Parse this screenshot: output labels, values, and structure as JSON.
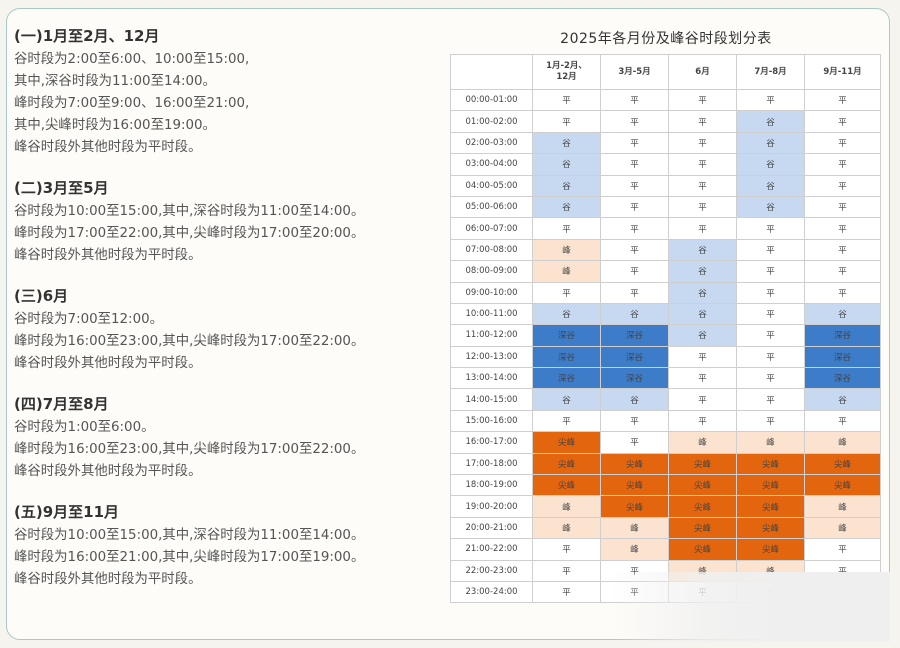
{
  "sections": [
    {
      "title": "(一)1月至2月、12月",
      "lines": [
        "谷时段为2:00至6:00、10:00至15:00,",
        "其中,深谷时段为11:00至14:00。",
        "峰时段为7:00至9:00、16:00至21:00,",
        "其中,尖峰时段为16:00至19:00。",
        "峰谷时段外其他时段为平时段。"
      ]
    },
    {
      "title": "(二)3月至5月",
      "lines": [
        "谷时段为10:00至15:00,其中,深谷时段为11:00至14:00。",
        "峰时段为17:00至22:00,其中,尖峰时段为17:00至20:00。",
        "峰谷时段外其他时段为平时段。"
      ]
    },
    {
      "title": "(三)6月",
      "lines": [
        "谷时段为7:00至12:00。",
        "峰时段为16:00至23:00,其中,尖峰时段为17:00至22:00。",
        "峰谷时段外其他时段为平时段。"
      ]
    },
    {
      "title": "(四)7月至8月",
      "lines": [
        "谷时段为1:00至6:00。",
        "峰时段为16:00至23:00,其中,尖峰时段为17:00至22:00。",
        "峰谷时段外其他时段为平时段。"
      ]
    },
    {
      "title": "(五)9月至11月",
      "lines": [
        "谷时段为10:00至15:00,其中,深谷时段为11:00至14:00。",
        "峰时段为16:00至21:00,其中,尖峰时段为17:00至19:00。",
        "峰谷时段外其他时段为平时段。"
      ]
    }
  ],
  "table": {
    "title": "2025年各月份及峰谷时段划分表",
    "columns": [
      "1月-2月、\n12月",
      "3月-5月",
      "6月",
      "7月-8月",
      "9月-11月"
    ],
    "rows": [
      {
        "time": "00:00-01:00",
        "cells": [
          "平",
          "平",
          "平",
          "平",
          "平"
        ]
      },
      {
        "time": "01:00-02:00",
        "cells": [
          "平",
          "平",
          "平",
          "谷",
          "平"
        ]
      },
      {
        "time": "02:00-03:00",
        "cells": [
          "谷",
          "平",
          "平",
          "谷",
          "平"
        ]
      },
      {
        "time": "03:00-04:00",
        "cells": [
          "谷",
          "平",
          "平",
          "谷",
          "平"
        ]
      },
      {
        "time": "04:00-05:00",
        "cells": [
          "谷",
          "平",
          "平",
          "谷",
          "平"
        ]
      },
      {
        "time": "05:00-06:00",
        "cells": [
          "谷",
          "平",
          "平",
          "谷",
          "平"
        ]
      },
      {
        "time": "06:00-07:00",
        "cells": [
          "平",
          "平",
          "平",
          "平",
          "平"
        ]
      },
      {
        "time": "07:00-08:00",
        "cells": [
          "峰",
          "平",
          "谷",
          "平",
          "平"
        ]
      },
      {
        "time": "08:00-09:00",
        "cells": [
          "峰",
          "平",
          "谷",
          "平",
          "平"
        ]
      },
      {
        "time": "09:00-10:00",
        "cells": [
          "平",
          "平",
          "谷",
          "平",
          "平"
        ]
      },
      {
        "time": "10:00-11:00",
        "cells": [
          "谷",
          "谷",
          "谷",
          "平",
          "谷"
        ]
      },
      {
        "time": "11:00-12:00",
        "cells": [
          "深谷",
          "深谷",
          "谷",
          "平",
          "深谷"
        ]
      },
      {
        "time": "12:00-13:00",
        "cells": [
          "深谷",
          "深谷",
          "平",
          "平",
          "深谷"
        ]
      },
      {
        "time": "13:00-14:00",
        "cells": [
          "深谷",
          "深谷",
          "平",
          "平",
          "深谷"
        ]
      },
      {
        "time": "14:00-15:00",
        "cells": [
          "谷",
          "谷",
          "平",
          "平",
          "谷"
        ]
      },
      {
        "time": "15:00-16:00",
        "cells": [
          "平",
          "平",
          "平",
          "平",
          "平"
        ]
      },
      {
        "time": "16:00-17:00",
        "cells": [
          "尖峰",
          "平",
          "峰",
          "峰",
          "峰"
        ]
      },
      {
        "time": "17:00-18:00",
        "cells": [
          "尖峰",
          "尖峰",
          "尖峰",
          "尖峰",
          "尖峰"
        ]
      },
      {
        "time": "18:00-19:00",
        "cells": [
          "尖峰",
          "尖峰",
          "尖峰",
          "尖峰",
          "尖峰"
        ]
      },
      {
        "time": "19:00-20:00",
        "cells": [
          "峰",
          "尖峰",
          "尖峰",
          "尖峰",
          "峰"
        ]
      },
      {
        "time": "20:00-21:00",
        "cells": [
          "峰",
          "峰",
          "尖峰",
          "尖峰",
          "峰"
        ]
      },
      {
        "time": "21:00-22:00",
        "cells": [
          "平",
          "峰",
          "尖峰",
          "尖峰",
          "平"
        ]
      },
      {
        "time": "22:00-23:00",
        "cells": [
          "平",
          "平",
          "峰",
          "峰",
          "平"
        ]
      },
      {
        "time": "23:00-24:00",
        "cells": [
          "平",
          "平",
          "平",
          "平",
          "平"
        ]
      }
    ]
  },
  "colors": {
    "平": "#ffffff",
    "谷": "#c6d9f1",
    "深谷": "#3d7cc9",
    "峰": "#fbe3cf",
    "尖峰": "#e3650d"
  }
}
